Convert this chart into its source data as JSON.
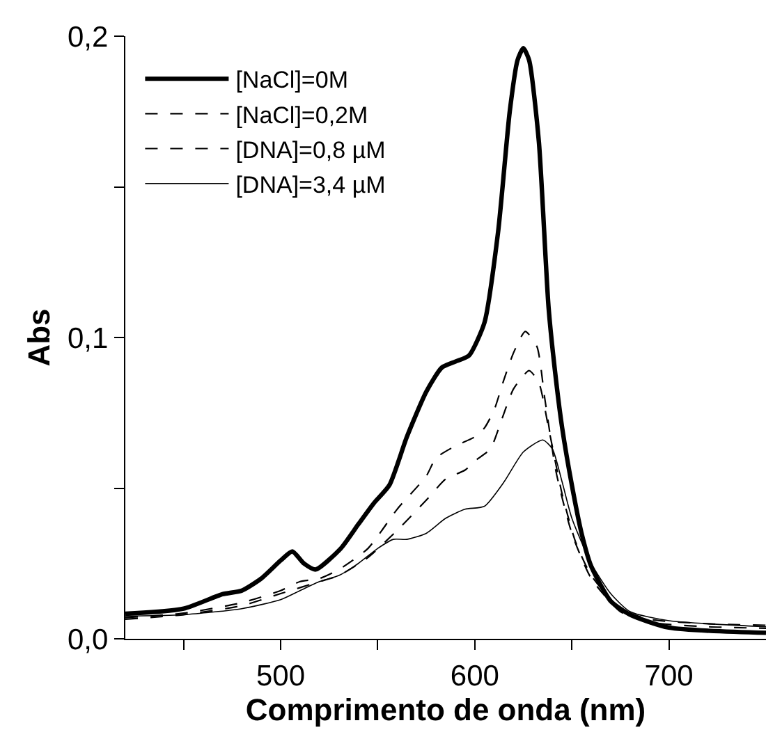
{
  "chart_data": {
    "type": "line",
    "xlabel": "Comprimento de onda (nm)",
    "ylabel": "Abs",
    "xlim": [
      420,
      750
    ],
    "ylim": [
      0,
      0.2
    ],
    "xticks": [
      {
        "value": 450,
        "label": null
      },
      500,
      {
        "value": 550,
        "label": null
      },
      600,
      {
        "value": 650,
        "label": null
      },
      700
    ],
    "yticks": [
      {
        "value": 0,
        "label": "0,0"
      },
      {
        "value": 0.05,
        "label": null
      },
      {
        "value": 0.1,
        "label": "0,1"
      },
      {
        "value": 0.15,
        "label": null
      },
      {
        "value": 0.2,
        "label": "0,2"
      }
    ],
    "legend": "top left",
    "marker": "none",
    "series": [
      {
        "name": "[NaCl]=0M",
        "color": "#000000",
        "line_style": "solid",
        "x": [
          420,
          450,
          470,
          480,
          490,
          500,
          506,
          512,
          518,
          531,
          540,
          548,
          556,
          565,
          575,
          583,
          590,
          597,
          605,
          612,
          618,
          622,
          625,
          628,
          633,
          638,
          642,
          645,
          650,
          655,
          660,
          670,
          680,
          700,
          750
        ],
        "values": [
          0.0083,
          0.01,
          0.0148,
          0.016,
          0.02,
          0.026,
          0.029,
          0.025,
          0.023,
          0.03,
          0.038,
          0.045,
          0.051,
          0.067,
          0.082,
          0.09,
          0.092,
          0.094,
          0.105,
          0.135,
          0.175,
          0.192,
          0.196,
          0.192,
          0.165,
          0.11,
          0.085,
          0.07,
          0.051,
          0.035,
          0.024,
          0.0125,
          0.008,
          0.0037,
          0.002
        ]
      },
      {
        "name": "[NaCl]=0,2M",
        "color": "#000000",
        "line_style": "dashed",
        "x": [
          420,
          450,
          480,
          500,
          510,
          520,
          530,
          545,
          560,
          575,
          580,
          590,
          600,
          605,
          610,
          615,
          620,
          626,
          632,
          636,
          642,
          650,
          660,
          675,
          690,
          720,
          750
        ],
        "values": [
          0.007,
          0.0085,
          0.012,
          0.016,
          0.019,
          0.02,
          0.023,
          0.03,
          0.043,
          0.054,
          0.06,
          0.064,
          0.067,
          0.07,
          0.076,
          0.086,
          0.095,
          0.102,
          0.097,
          0.08,
          0.055,
          0.035,
          0.02,
          0.009,
          0.0055,
          0.004,
          0.0035
        ]
      },
      {
        "name": "[DNA]=0,8 µM",
        "color": "#000000",
        "line_style": "dashed",
        "x": [
          420,
          450,
          480,
          500,
          520,
          530,
          545,
          560,
          575,
          585,
          595,
          600,
          608,
          614,
          620,
          628,
          633,
          638,
          645,
          652,
          660,
          675,
          690,
          720,
          750
        ],
        "values": [
          0.0065,
          0.008,
          0.011,
          0.015,
          0.019,
          0.021,
          0.027,
          0.036,
          0.046,
          0.053,
          0.056,
          0.059,
          0.063,
          0.073,
          0.083,
          0.089,
          0.085,
          0.07,
          0.048,
          0.032,
          0.021,
          0.01,
          0.0065,
          0.005,
          0.0045
        ]
      },
      {
        "name": "[DNA]=3,4 µM",
        "color": "#000000",
        "line_style": "solid",
        "x": [
          420,
          450,
          480,
          500,
          510,
          520,
          530,
          540,
          550,
          558,
          565,
          575,
          585,
          595,
          605,
          615,
          625,
          635,
          640,
          645,
          650,
          660,
          670,
          680,
          700,
          750
        ],
        "values": [
          0.0075,
          0.008,
          0.01,
          0.013,
          0.016,
          0.019,
          0.021,
          0.025,
          0.03,
          0.033,
          0.033,
          0.035,
          0.04,
          0.043,
          0.044,
          0.052,
          0.062,
          0.066,
          0.063,
          0.052,
          0.04,
          0.025,
          0.015,
          0.009,
          0.006,
          0.004
        ]
      }
    ]
  }
}
